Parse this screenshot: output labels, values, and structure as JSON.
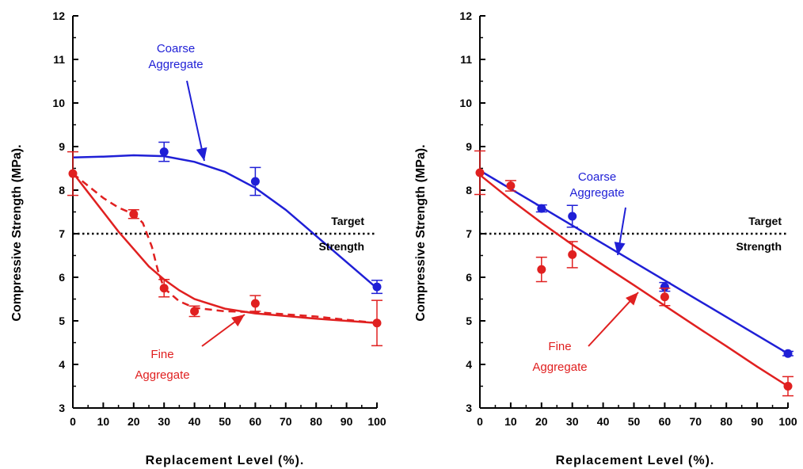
{
  "chart_data": [
    {
      "type": "line",
      "xlabel": "Replacement Level (%).",
      "ylabel": "Compressive Strength (MPa).",
      "xlim": [
        0,
        100
      ],
      "ylim": [
        3,
        12
      ],
      "xticks": [
        0,
        10,
        20,
        30,
        40,
        50,
        60,
        70,
        80,
        90,
        100
      ],
      "yticks": [
        3,
        4,
        5,
        6,
        7,
        8,
        9,
        10,
        11,
        12
      ],
      "target_strength": 7,
      "colors": {
        "coarse": "#1f1fd6",
        "fine": "#e02020"
      },
      "series": [
        {
          "name": "Coarse Aggregate",
          "color": "#1f1fd6",
          "points": [
            {
              "x": 30,
              "y": 8.88,
              "err": 0.22
            },
            {
              "x": 60,
              "y": 8.2,
              "err": 0.32
            },
            {
              "x": 100,
              "y": 5.78,
              "err": 0.15
            }
          ],
          "fit": [
            [
              0,
              8.75
            ],
            [
              10,
              8.77
            ],
            [
              20,
              8.8
            ],
            [
              30,
              8.78
            ],
            [
              40,
              8.65
            ],
            [
              50,
              8.42
            ],
            [
              60,
              8.05
            ],
            [
              70,
              7.55
            ],
            [
              80,
              6.95
            ],
            [
              90,
              6.35
            ],
            [
              100,
              5.75
            ]
          ]
        },
        {
          "name": "Fine Aggregate",
          "color": "#e02020",
          "points": [
            {
              "x": 0,
              "y": 8.38,
              "err": 0.5
            },
            {
              "x": 20,
              "y": 7.45,
              "err": 0.1
            },
            {
              "x": 30,
              "y": 5.75,
              "err": 0.2
            },
            {
              "x": 40,
              "y": 5.22,
              "err": 0.12
            },
            {
              "x": 60,
              "y": 5.4,
              "err": 0.18
            },
            {
              "x": 100,
              "y": 4.95,
              "err": 0.52
            }
          ],
          "fit": [
            [
              0,
              8.4
            ],
            [
              5,
              7.95
            ],
            [
              10,
              7.5
            ],
            [
              15,
              7.05
            ],
            [
              20,
              6.65
            ],
            [
              25,
              6.25
            ],
            [
              30,
              5.95
            ],
            [
              35,
              5.7
            ],
            [
              40,
              5.5
            ],
            [
              50,
              5.28
            ],
            [
              60,
              5.17
            ],
            [
              70,
              5.11
            ],
            [
              80,
              5.05
            ],
            [
              90,
              5.0
            ],
            [
              100,
              4.95
            ]
          ],
          "dashed": [
            [
              0,
              8.38
            ],
            [
              5,
              8.1
            ],
            [
              10,
              7.82
            ],
            [
              15,
              7.6
            ],
            [
              20,
              7.45
            ],
            [
              23,
              7.25
            ],
            [
              26,
              6.7
            ],
            [
              28,
              6.15
            ],
            [
              30,
              5.75
            ],
            [
              35,
              5.45
            ],
            [
              40,
              5.3
            ],
            [
              50,
              5.22
            ],
            [
              60,
              5.2
            ],
            [
              80,
              5.1
            ],
            [
              100,
              4.95
            ]
          ]
        }
      ],
      "annotations": {
        "coarse": [
          "Coarse",
          "Aggregate"
        ],
        "fine": [
          "Fine",
          "Aggregate"
        ],
        "target": [
          "Target",
          "Strength"
        ]
      }
    },
    {
      "type": "line",
      "xlabel": "Replacement Level (%).",
      "ylabel": "Compressive Strength (MPa).",
      "xlim": [
        0,
        100
      ],
      "ylim": [
        3,
        12
      ],
      "xticks": [
        0,
        10,
        20,
        30,
        40,
        50,
        60,
        70,
        80,
        90,
        100
      ],
      "yticks": [
        3,
        4,
        5,
        6,
        7,
        8,
        9,
        10,
        11,
        12
      ],
      "target_strength": 7,
      "colors": {
        "coarse": "#1f1fd6",
        "fine": "#e02020"
      },
      "series": [
        {
          "name": "Coarse Aggregate",
          "color": "#1f1fd6",
          "points": [
            {
              "x": 20,
              "y": 7.58,
              "err": 0.08
            },
            {
              "x": 30,
              "y": 7.4,
              "err": 0.25
            },
            {
              "x": 60,
              "y": 5.78,
              "err": 0.1
            },
            {
              "x": 100,
              "y": 4.25,
              "err": 0.05
            }
          ],
          "fit": [
            [
              0,
              8.45
            ],
            [
              100,
              4.25
            ]
          ]
        },
        {
          "name": "Fine Aggregate",
          "color": "#e02020",
          "points": [
            {
              "x": 0,
              "y": 8.4,
              "err": 0.5
            },
            {
              "x": 10,
              "y": 8.1,
              "err": 0.12
            },
            {
              "x": 20,
              "y": 6.18,
              "err": 0.28
            },
            {
              "x": 30,
              "y": 6.52,
              "err": 0.3
            },
            {
              "x": 60,
              "y": 5.55,
              "err": 0.2
            },
            {
              "x": 100,
              "y": 3.5,
              "err": 0.22
            }
          ],
          "fit": [
            [
              0,
              8.35
            ],
            [
              10,
              7.78
            ],
            [
              20,
              7.25
            ],
            [
              30,
              6.75
            ],
            [
              40,
              6.28
            ],
            [
              50,
              5.82
            ],
            [
              60,
              5.35
            ],
            [
              70,
              4.88
            ],
            [
              80,
              4.42
            ],
            [
              90,
              3.95
            ],
            [
              100,
              3.5
            ]
          ]
        }
      ],
      "annotations": {
        "coarse": [
          "Coarse",
          "Aggregate"
        ],
        "fine": [
          "Fine",
          "Aggregate"
        ],
        "target": [
          "Target",
          "Strength"
        ]
      }
    }
  ]
}
